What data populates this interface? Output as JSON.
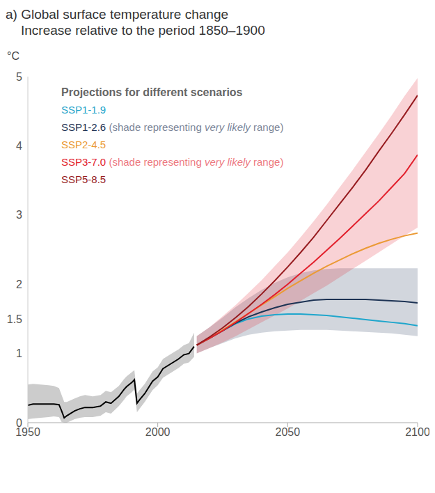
{
  "chart_data": {
    "type": "line",
    "title": "a) Global surface temperature change",
    "subtitle": "Increase relative to the period 1850–1900",
    "y_label": "°C",
    "legend_title": "Projections for different scenarios",
    "legend": "upper left",
    "grid": false,
    "xlim": [
      1950,
      2100
    ],
    "xticks": [
      1950,
      2000,
      2050,
      2100
    ],
    "ylim": [
      0,
      5
    ],
    "yticks": [
      0,
      1,
      1.5,
      2,
      3,
      4,
      5
    ],
    "x": [
      1950,
      1952,
      1955,
      1958,
      1960,
      1962,
      1963,
      1964,
      1965,
      1968,
      1970,
      1972,
      1975,
      1978,
      1980,
      1982,
      1985,
      1987,
      1988,
      1990,
      1991,
      1992,
      1993,
      1995,
      1998,
      2000,
      2002,
      2005,
      2008,
      2010,
      2012,
      2014,
      2015,
      2020,
      2025,
      2030,
      2035,
      2040,
      2045,
      2050,
      2055,
      2060,
      2065,
      2070,
      2075,
      2080,
      2085,
      2090,
      2095,
      2100
    ],
    "series": [
      {
        "color": "#000000",
        "values": [
          0.25,
          0.27,
          0.27,
          0.27,
          0.27,
          0.26,
          0.17,
          0.07,
          0.1,
          0.17,
          0.2,
          0.22,
          0.22,
          0.24,
          0.3,
          0.28,
          0.38,
          0.48,
          0.52,
          0.58,
          0.62,
          0.28,
          0.33,
          0.42,
          0.6,
          0.66,
          0.78,
          0.85,
          0.92,
          0.98,
          1.0,
          1.1,
          null,
          null,
          null,
          null,
          null,
          null,
          null,
          null,
          null,
          null,
          null,
          null,
          null,
          null,
          null,
          null,
          null,
          null
        ],
        "lower": [
          0.05,
          0.06,
          0.07,
          0.08,
          0.09,
          0.08,
          0.01,
          0.0,
          0.0,
          0.05,
          0.07,
          0.08,
          0.08,
          0.1,
          0.15,
          0.13,
          0.24,
          0.33,
          0.38,
          0.44,
          0.48,
          0.15,
          0.2,
          0.3,
          0.47,
          0.54,
          0.65,
          0.72,
          0.79,
          0.85,
          0.87,
          0.95,
          null,
          null,
          null,
          null,
          null,
          null,
          null,
          null,
          null,
          null,
          null,
          null,
          null,
          null,
          null,
          null,
          null,
          null
        ],
        "upper": [
          0.55,
          0.56,
          0.55,
          0.54,
          0.53,
          0.5,
          0.4,
          0.3,
          0.3,
          0.35,
          0.38,
          0.4,
          0.38,
          0.4,
          0.46,
          0.44,
          0.53,
          0.63,
          0.67,
          0.73,
          0.76,
          0.42,
          0.47,
          0.56,
          0.74,
          0.8,
          0.92,
          0.99,
          1.06,
          1.12,
          1.15,
          1.3,
          null,
          null,
          null,
          null,
          null,
          null,
          null,
          null,
          null,
          null,
          null,
          null,
          null,
          null,
          null,
          null,
          null,
          null
        ]
      },
      {
        "name": "SSP1-1.9",
        "color": "#1fa6cc",
        "values": [
          null,
          null,
          null,
          null,
          null,
          null,
          null,
          null,
          null,
          null,
          null,
          null,
          null,
          null,
          null,
          null,
          null,
          null,
          null,
          null,
          null,
          null,
          null,
          null,
          null,
          null,
          null,
          null,
          null,
          null,
          null,
          null,
          1.12,
          1.22,
          1.33,
          1.43,
          1.5,
          1.54,
          1.56,
          1.57,
          1.57,
          1.56,
          1.55,
          1.53,
          1.51,
          1.49,
          1.47,
          1.45,
          1.43,
          1.4
        ]
      },
      {
        "name": "SSP1-2.6",
        "color": "#1d3354",
        "range_label": [
          "(shade representing ",
          "very likely",
          " range)"
        ],
        "values": [
          null,
          null,
          null,
          null,
          null,
          null,
          null,
          null,
          null,
          null,
          null,
          null,
          null,
          null,
          null,
          null,
          null,
          null,
          null,
          null,
          null,
          null,
          null,
          null,
          null,
          null,
          null,
          null,
          null,
          null,
          null,
          null,
          1.12,
          1.22,
          1.33,
          1.44,
          1.53,
          1.6,
          1.66,
          1.71,
          1.74,
          1.77,
          1.78,
          1.78,
          1.78,
          1.78,
          1.77,
          1.76,
          1.75,
          1.73
        ],
        "lower": [
          null,
          null,
          null,
          null,
          null,
          null,
          null,
          null,
          null,
          null,
          null,
          null,
          null,
          null,
          null,
          null,
          null,
          null,
          null,
          null,
          null,
          null,
          null,
          null,
          null,
          null,
          null,
          null,
          null,
          null,
          null,
          null,
          1.0,
          1.08,
          1.15,
          1.22,
          1.27,
          1.3,
          1.32,
          1.33,
          1.34,
          1.34,
          1.34,
          1.33,
          1.32,
          1.31,
          1.3,
          1.29,
          1.27,
          1.25
        ],
        "upper": [
          null,
          null,
          null,
          null,
          null,
          null,
          null,
          null,
          null,
          null,
          null,
          null,
          null,
          null,
          null,
          null,
          null,
          null,
          null,
          null,
          null,
          null,
          null,
          null,
          null,
          null,
          null,
          null,
          null,
          null,
          null,
          null,
          1.25,
          1.38,
          1.52,
          1.67,
          1.8,
          1.92,
          2.02,
          2.1,
          2.16,
          2.2,
          2.22,
          2.23,
          2.23,
          2.23,
          2.23,
          2.23,
          2.23,
          2.23
        ]
      },
      {
        "name": "SSP2-4.5",
        "color": "#eb9a35",
        "values": [
          null,
          null,
          null,
          null,
          null,
          null,
          null,
          null,
          null,
          null,
          null,
          null,
          null,
          null,
          null,
          null,
          null,
          null,
          null,
          null,
          null,
          null,
          null,
          null,
          null,
          null,
          null,
          null,
          null,
          null,
          null,
          null,
          1.12,
          1.22,
          1.34,
          1.46,
          1.58,
          1.7,
          1.82,
          1.94,
          2.05,
          2.16,
          2.26,
          2.35,
          2.44,
          2.52,
          2.59,
          2.65,
          2.7,
          2.74
        ]
      },
      {
        "name": "SSP3-7.0",
        "color": "#e2202c",
        "range_label": [
          "(shade representing ",
          "very likely",
          " range)"
        ],
        "values": [
          null,
          null,
          null,
          null,
          null,
          null,
          null,
          null,
          null,
          null,
          null,
          null,
          null,
          null,
          null,
          null,
          null,
          null,
          null,
          null,
          null,
          null,
          null,
          null,
          null,
          null,
          null,
          null,
          null,
          null,
          null,
          null,
          1.12,
          1.22,
          1.33,
          1.45,
          1.58,
          1.71,
          1.85,
          2.0,
          2.16,
          2.32,
          2.49,
          2.66,
          2.84,
          3.02,
          3.2,
          3.4,
          3.6,
          3.87
        ],
        "lower": [
          null,
          null,
          null,
          null,
          null,
          null,
          null,
          null,
          null,
          null,
          null,
          null,
          null,
          null,
          null,
          null,
          null,
          null,
          null,
          null,
          null,
          null,
          null,
          null,
          null,
          null,
          null,
          null,
          null,
          null,
          null,
          null,
          1.0,
          1.08,
          1.16,
          1.25,
          1.35,
          1.45,
          1.55,
          1.65,
          1.76,
          1.87,
          1.98,
          2.1,
          2.22,
          2.34,
          2.46,
          2.58,
          2.7,
          2.82
        ],
        "upper": [
          null,
          null,
          null,
          null,
          null,
          null,
          null,
          null,
          null,
          null,
          null,
          null,
          null,
          null,
          null,
          null,
          null,
          null,
          null,
          null,
          null,
          null,
          null,
          null,
          null,
          null,
          null,
          null,
          null,
          null,
          null,
          null,
          1.25,
          1.38,
          1.54,
          1.7,
          1.88,
          2.06,
          2.26,
          2.46,
          2.68,
          2.91,
          3.15,
          3.4,
          3.65,
          3.91,
          4.17,
          4.44,
          4.72,
          4.98
        ]
      },
      {
        "name": "SSP5-8.5",
        "color": "#961b1f",
        "values": [
          null,
          null,
          null,
          null,
          null,
          null,
          null,
          null,
          null,
          null,
          null,
          null,
          null,
          null,
          null,
          null,
          null,
          null,
          null,
          null,
          null,
          null,
          null,
          null,
          null,
          null,
          null,
          null,
          null,
          null,
          null,
          null,
          1.12,
          1.24,
          1.37,
          1.52,
          1.68,
          1.86,
          2.05,
          2.25,
          2.46,
          2.68,
          2.92,
          3.16,
          3.4,
          3.65,
          3.92,
          4.18,
          4.45,
          4.73
        ]
      }
    ]
  }
}
